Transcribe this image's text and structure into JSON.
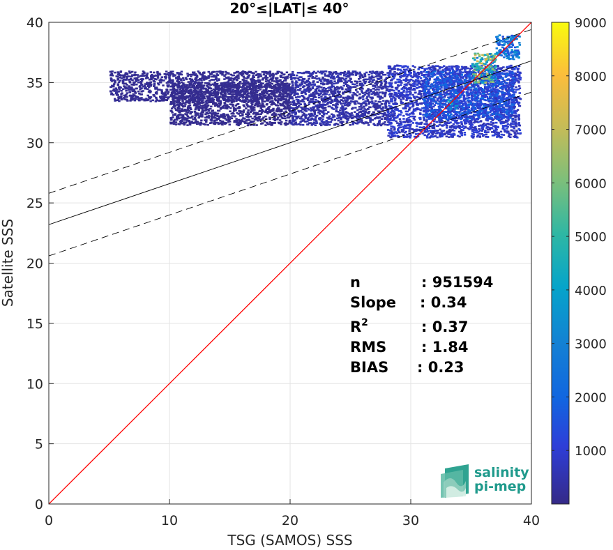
{
  "chart_data": {
    "type": "heatmap",
    "title": "20°≤|LAT|≤ 40°",
    "xlabel": "TSG (SAMOS) SSS",
    "ylabel": "Satellite SSS",
    "xlim": [
      0,
      40
    ],
    "ylim": [
      0,
      40
    ],
    "x_ticks": [
      "0",
      "10",
      "20",
      "30",
      "40"
    ],
    "y_ticks": [
      "0",
      "5",
      "10",
      "15",
      "20",
      "25",
      "30",
      "35",
      "40"
    ],
    "grid": true,
    "colorbar": {
      "range": [
        0,
        9000
      ],
      "ticks": [
        "1000",
        "2000",
        "3000",
        "4000",
        "5000",
        "6000",
        "7000",
        "8000",
        "9000"
      ],
      "colormap": "parula"
    },
    "lines": [
      {
        "name": "1:1",
        "style": "solid",
        "color": "#ff0000",
        "x": [
          0,
          40
        ],
        "y": [
          0,
          40
        ]
      },
      {
        "name": "fit",
        "style": "solid",
        "color": "#000000",
        "x": [
          0,
          40
        ],
        "y": [
          23.2,
          36.8
        ]
      },
      {
        "name": "fit+",
        "style": "dashed",
        "color": "#000000",
        "x": [
          0,
          40
        ],
        "y": [
          25.8,
          39.4
        ]
      },
      {
        "name": "fit-",
        "style": "dashed",
        "color": "#000000",
        "x": [
          0,
          40
        ],
        "y": [
          20.6,
          34.2
        ]
      }
    ],
    "density_regions": [
      {
        "x": [
          5.0,
          20.0
        ],
        "y": [
          33.5,
          36.0
        ],
        "level": 150
      },
      {
        "x": [
          10.0,
          20.0
        ],
        "y": [
          31.5,
          35.0
        ],
        "level": 100
      },
      {
        "x": [
          20.0,
          28.0
        ],
        "y": [
          31.5,
          36.0
        ],
        "level": 400
      },
      {
        "x": [
          28.0,
          39.0
        ],
        "y": [
          30.5,
          36.5
        ],
        "level": 800
      },
      {
        "x": [
          31.0,
          38.5
        ],
        "y": [
          32.0,
          36.0
        ],
        "level": 1500
      },
      {
        "x": [
          35.0,
          37.0
        ],
        "y": [
          35.0,
          37.5
        ],
        "level": 5000
      },
      {
        "x": [
          33.0,
          33.8
        ],
        "y": [
          32.8,
          33.6
        ],
        "level": 3000
      },
      {
        "x": [
          37.0,
          39.0
        ],
        "y": [
          37.0,
          39.0
        ],
        "level": 2500
      }
    ],
    "stats": {
      "n": "951594",
      "slope": "0.34",
      "r2": "0.37",
      "rms": "1.84",
      "bias": "0.23"
    },
    "stats_labels": {
      "n": "n",
      "slope": "Slope",
      "r2_base": "R",
      "r2_sup": "2",
      "rms": "RMS",
      "bias": "BIAS"
    },
    "stats_values": {
      "n": ": 951594",
      "slope": ": 0.34",
      "r2": ": 0.37",
      "rms": ": 1.84",
      "bias": ": 0.23"
    }
  },
  "logo": {
    "line1": "salinity",
    "line2": "pi-mep"
  }
}
